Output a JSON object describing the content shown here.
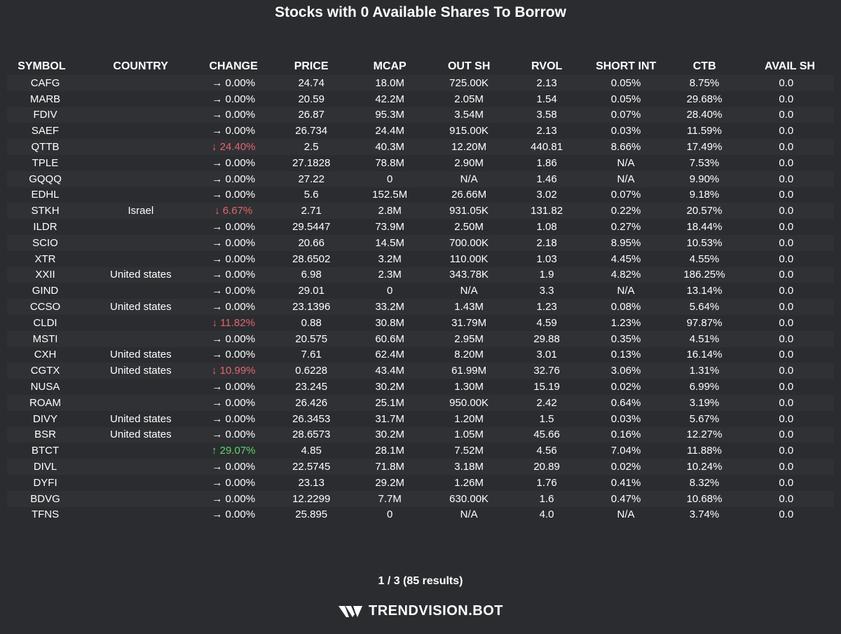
{
  "title": "Stocks with 0 Available Shares To Borrow",
  "colors": {
    "background": "#2b2c30",
    "stripe": "#303135",
    "down": "#e0686a",
    "up": "#5cd66a",
    "neutral": "#ffffff"
  },
  "columns": [
    "SYMBOL",
    "COUNTRY",
    "CHANGE",
    "PRICE",
    "MCAP",
    "OUT SH",
    "RVOL",
    "SHORT INT",
    "CTB",
    "AVAIL SH"
  ],
  "rows": [
    {
      "symbol": "CAFG",
      "country": "",
      "change": "→ 0.00%",
      "dir": "neutral",
      "price": "24.74",
      "mcap": "18.0M",
      "outsh": "725.00K",
      "rvol": "2.13",
      "shortint": "0.05%",
      "ctb": "8.75%",
      "avail": "0.0"
    },
    {
      "symbol": "MARB",
      "country": "",
      "change": "→ 0.00%",
      "dir": "neutral",
      "price": "20.59",
      "mcap": "42.2M",
      "outsh": "2.05M",
      "rvol": "1.54",
      "shortint": "0.05%",
      "ctb": "29.68%",
      "avail": "0.0"
    },
    {
      "symbol": "FDIV",
      "country": "",
      "change": "→ 0.00%",
      "dir": "neutral",
      "price": "26.87",
      "mcap": "95.3M",
      "outsh": "3.54M",
      "rvol": "3.58",
      "shortint": "0.07%",
      "ctb": "28.40%",
      "avail": "0.0"
    },
    {
      "symbol": "SAEF",
      "country": "",
      "change": "→ 0.00%",
      "dir": "neutral",
      "price": "26.734",
      "mcap": "24.4M",
      "outsh": "915.00K",
      "rvol": "2.13",
      "shortint": "0.03%",
      "ctb": "11.59%",
      "avail": "0.0"
    },
    {
      "symbol": "QTTB",
      "country": "",
      "change": "↓ 24.40%",
      "dir": "down",
      "price": "2.5",
      "mcap": "40.3M",
      "outsh": "12.20M",
      "rvol": "440.81",
      "shortint": "8.66%",
      "ctb": "17.49%",
      "avail": "0.0"
    },
    {
      "symbol": "TPLE",
      "country": "",
      "change": "→ 0.00%",
      "dir": "neutral",
      "price": "27.1828",
      "mcap": "78.8M",
      "outsh": "2.90M",
      "rvol": "1.86",
      "shortint": "N/A",
      "ctb": "7.53%",
      "avail": "0.0"
    },
    {
      "symbol": "GQQQ",
      "country": "",
      "change": "→ 0.00%",
      "dir": "neutral",
      "price": "27.22",
      "mcap": "0",
      "outsh": "N/A",
      "rvol": "1.46",
      "shortint": "N/A",
      "ctb": "9.90%",
      "avail": "0.0"
    },
    {
      "symbol": "EDHL",
      "country": "",
      "change": "→ 0.00%",
      "dir": "neutral",
      "price": "5.6",
      "mcap": "152.5M",
      "outsh": "26.66M",
      "rvol": "3.02",
      "shortint": "0.07%",
      "ctb": "9.18%",
      "avail": "0.0"
    },
    {
      "symbol": "STKH",
      "country": "Israel",
      "change": "↓ 6.67%",
      "dir": "down",
      "price": "2.71",
      "mcap": "2.8M",
      "outsh": "931.05K",
      "rvol": "131.82",
      "shortint": "0.22%",
      "ctb": "20.57%",
      "avail": "0.0"
    },
    {
      "symbol": "ILDR",
      "country": "",
      "change": "→ 0.00%",
      "dir": "neutral",
      "price": "29.5447",
      "mcap": "73.9M",
      "outsh": "2.50M",
      "rvol": "1.08",
      "shortint": "0.27%",
      "ctb": "18.44%",
      "avail": "0.0"
    },
    {
      "symbol": "SCIO",
      "country": "",
      "change": "→ 0.00%",
      "dir": "neutral",
      "price": "20.66",
      "mcap": "14.5M",
      "outsh": "700.00K",
      "rvol": "2.18",
      "shortint": "8.95%",
      "ctb": "10.53%",
      "avail": "0.0"
    },
    {
      "symbol": "XTR",
      "country": "",
      "change": "→ 0.00%",
      "dir": "neutral",
      "price": "28.6502",
      "mcap": "3.2M",
      "outsh": "110.00K",
      "rvol": "1.03",
      "shortint": "4.45%",
      "ctb": "4.55%",
      "avail": "0.0"
    },
    {
      "symbol": "XXII",
      "country": "United states",
      "change": "→ 0.00%",
      "dir": "neutral",
      "price": "6.98",
      "mcap": "2.3M",
      "outsh": "343.78K",
      "rvol": "1.9",
      "shortint": "4.82%",
      "ctb": "186.25%",
      "avail": "0.0"
    },
    {
      "symbol": "GIND",
      "country": "",
      "change": "→ 0.00%",
      "dir": "neutral",
      "price": "29.01",
      "mcap": "0",
      "outsh": "N/A",
      "rvol": "3.3",
      "shortint": "N/A",
      "ctb": "13.14%",
      "avail": "0.0"
    },
    {
      "symbol": "CCSO",
      "country": "United states",
      "change": "→ 0.00%",
      "dir": "neutral",
      "price": "23.1396",
      "mcap": "33.2M",
      "outsh": "1.43M",
      "rvol": "1.23",
      "shortint": "0.08%",
      "ctb": "5.64%",
      "avail": "0.0"
    },
    {
      "symbol": "CLDI",
      "country": "",
      "change": "↓ 11.82%",
      "dir": "down",
      "price": "0.88",
      "mcap": "30.8M",
      "outsh": "31.79M",
      "rvol": "4.59",
      "shortint": "1.23%",
      "ctb": "97.87%",
      "avail": "0.0"
    },
    {
      "symbol": "MSTI",
      "country": "",
      "change": "→ 0.00%",
      "dir": "neutral",
      "price": "20.575",
      "mcap": "60.6M",
      "outsh": "2.95M",
      "rvol": "29.88",
      "shortint": "0.35%",
      "ctb": "4.51%",
      "avail": "0.0"
    },
    {
      "symbol": "CXH",
      "country": "United states",
      "change": "→ 0.00%",
      "dir": "neutral",
      "price": "7.61",
      "mcap": "62.4M",
      "outsh": "8.20M",
      "rvol": "3.01",
      "shortint": "0.13%",
      "ctb": "16.14%",
      "avail": "0.0"
    },
    {
      "symbol": "CGTX",
      "country": "United states",
      "change": "↓ 10.99%",
      "dir": "down",
      "price": "0.6228",
      "mcap": "43.4M",
      "outsh": "61.99M",
      "rvol": "32.76",
      "shortint": "3.06%",
      "ctb": "1.31%",
      "avail": "0.0"
    },
    {
      "symbol": "NUSA",
      "country": "",
      "change": "→ 0.00%",
      "dir": "neutral",
      "price": "23.245",
      "mcap": "30.2M",
      "outsh": "1.30M",
      "rvol": "15.19",
      "shortint": "0.02%",
      "ctb": "6.99%",
      "avail": "0.0"
    },
    {
      "symbol": "ROAM",
      "country": "",
      "change": "→ 0.00%",
      "dir": "neutral",
      "price": "26.426",
      "mcap": "25.1M",
      "outsh": "950.00K",
      "rvol": "2.42",
      "shortint": "0.64%",
      "ctb": "3.19%",
      "avail": "0.0"
    },
    {
      "symbol": "DIVY",
      "country": "United states",
      "change": "→ 0.00%",
      "dir": "neutral",
      "price": "26.3453",
      "mcap": "31.7M",
      "outsh": "1.20M",
      "rvol": "1.5",
      "shortint": "0.03%",
      "ctb": "5.67%",
      "avail": "0.0"
    },
    {
      "symbol": "BSR",
      "country": "United states",
      "change": "→ 0.00%",
      "dir": "neutral",
      "price": "28.6573",
      "mcap": "30.2M",
      "outsh": "1.05M",
      "rvol": "45.66",
      "shortint": "0.16%",
      "ctb": "12.27%",
      "avail": "0.0"
    },
    {
      "symbol": "BTCT",
      "country": "",
      "change": "↑ 29.07%",
      "dir": "up",
      "price": "4.85",
      "mcap": "28.1M",
      "outsh": "7.52M",
      "rvol": "4.56",
      "shortint": "7.04%",
      "ctb": "11.88%",
      "avail": "0.0"
    },
    {
      "symbol": "DIVL",
      "country": "",
      "change": "→ 0.00%",
      "dir": "neutral",
      "price": "22.5745",
      "mcap": "71.8M",
      "outsh": "3.18M",
      "rvol": "20.89",
      "shortint": "0.02%",
      "ctb": "10.24%",
      "avail": "0.0"
    },
    {
      "symbol": "DYFI",
      "country": "",
      "change": "→ 0.00%",
      "dir": "neutral",
      "price": "23.13",
      "mcap": "29.2M",
      "outsh": "1.26M",
      "rvol": "1.76",
      "shortint": "0.41%",
      "ctb": "8.32%",
      "avail": "0.0"
    },
    {
      "symbol": "BDVG",
      "country": "",
      "change": "→ 0.00%",
      "dir": "neutral",
      "price": "12.2299",
      "mcap": "7.7M",
      "outsh": "630.00K",
      "rvol": "1.6",
      "shortint": "0.47%",
      "ctb": "10.68%",
      "avail": "0.0"
    },
    {
      "symbol": "TFNS",
      "country": "",
      "change": "→ 0.00%",
      "dir": "neutral",
      "price": "25.895",
      "mcap": "0",
      "outsh": "N/A",
      "rvol": "4.0",
      "shortint": "N/A",
      "ctb": "3.74%",
      "avail": "0.0"
    }
  ],
  "pager": "1 / 3 (85 results)",
  "brand": {
    "text": "TRENDVISION.BOT",
    "logo_icon": "trendvision-logo-icon"
  }
}
